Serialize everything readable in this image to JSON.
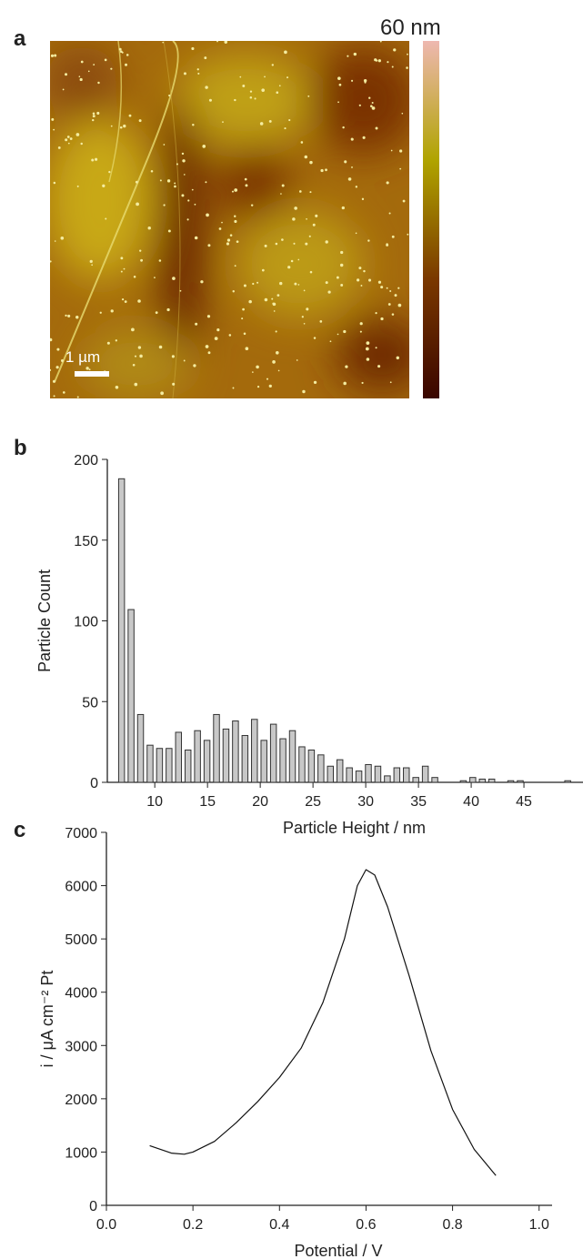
{
  "chart_data": [
    {
      "type": "image",
      "panel_label": "a",
      "colorbar_label": "60 nm",
      "scale_bar_label": "1 µm",
      "colorbar_colors": [
        "#eeb8b0",
        "#b0a400",
        "#7a3800",
        "#3a0600"
      ]
    },
    {
      "type": "histogram",
      "panel_label": "b",
      "xlabel": "Particle Height / nm",
      "ylabel": "Particle Count",
      "color": "#c8c8c8",
      "bins": [
        6.4,
        7.3,
        8.2,
        9.1,
        10,
        10.9,
        11.8,
        12.7,
        13.6,
        14.5,
        15.4,
        16.3,
        17.2,
        18.1,
        19,
        19.9,
        20.8,
        21.7,
        22.6,
        23.5,
        24.4,
        25.3,
        26.2,
        27.1,
        28,
        28.9,
        29.8,
        30.7,
        31.6,
        32.5,
        33.4,
        34.3,
        35.2,
        36.1,
        37,
        37.9,
        38.8,
        39.7,
        40.6,
        41.5,
        42.4,
        43.3,
        44.2,
        45.1,
        46,
        46.9,
        47.8,
        48.7,
        49.6
      ],
      "values": [
        188,
        107,
        42,
        23,
        21,
        21,
        31,
        20,
        32,
        26,
        42,
        33,
        38,
        29,
        39,
        26,
        36,
        27,
        32,
        22,
        20,
        17,
        10,
        14,
        9,
        7,
        11,
        10,
        4,
        9,
        9,
        3,
        10,
        3,
        0,
        0,
        1,
        3,
        2,
        2,
        0,
        1,
        1,
        0,
        0,
        0,
        0,
        1
      ],
      "xlim": [
        5.5,
        50.6
      ],
      "xticks": [
        10,
        15,
        20,
        25,
        30,
        35,
        40,
        45
      ],
      "ylim": [
        0,
        200
      ],
      "yticks": [
        0,
        50,
        100,
        150,
        200
      ]
    },
    {
      "type": "line",
      "panel_label": "c",
      "xlabel": "Potential / V",
      "ylabel": "i / μA cm⁻² Pt",
      "color": "#111",
      "x": [
        0.1,
        0.15,
        0.18,
        0.2,
        0.25,
        0.3,
        0.35,
        0.4,
        0.45,
        0.5,
        0.55,
        0.58,
        0.6,
        0.62,
        0.65,
        0.7,
        0.75,
        0.8,
        0.85,
        0.9
      ],
      "values": [
        1120,
        980,
        960,
        1000,
        1200,
        1550,
        1950,
        2400,
        2950,
        3800,
        5000,
        6000,
        6300,
        6200,
        5600,
        4300,
        2900,
        1800,
        1050,
        560
      ],
      "xlim": [
        0,
        1.03
      ],
      "xticks": [
        {
          "value": 0,
          "label": "0.0"
        },
        0.2,
        0.4,
        0.6,
        0.8,
        {
          "value": 1,
          "label": "1.0"
        }
      ],
      "ylim": [
        0,
        7000
      ],
      "yticks": [
        0,
        1000,
        2000,
        3000,
        4000,
        5000,
        6000,
        7000
      ]
    }
  ]
}
